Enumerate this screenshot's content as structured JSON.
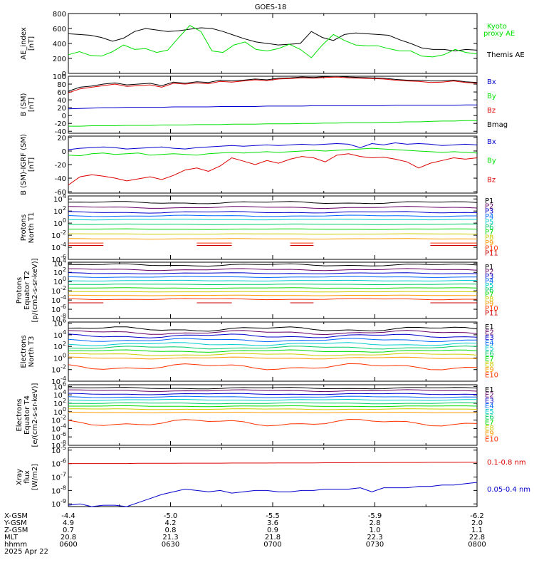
{
  "title": "GOES-18",
  "colors": {
    "black": "#000000",
    "green": "#00e000",
    "blue": "#0000cc",
    "red": "#dd0000",
    "p_colors": [
      "#000000",
      "#660066",
      "#0000cc",
      "#0066ff",
      "#00cccc",
      "#00cc66",
      "#00dd00",
      "#cccc00",
      "#ff9900",
      "#ff3300",
      "#cc0000"
    ],
    "e_colors": [
      "#000000",
      "#660066",
      "#0000cc",
      "#0066ff",
      "#00cccc",
      "#00cc66",
      "#00dd00",
      "#cccc00",
      "#ff9900",
      "#ff3300",
      "#cc0000"
    ]
  },
  "chart_data": [
    {
      "id": "ae",
      "type": "line",
      "ylabel": "AE_index [nT]",
      "yticks": [
        "800",
        "600",
        "400",
        "200",
        "0"
      ],
      "ylim": [
        0,
        800
      ],
      "legend": [
        {
          "text": "Kyoto",
          "color": "green"
        },
        {
          "text": "proxy AE",
          "color": "green"
        },
        {
          "text": "Themis AE",
          "color": "black"
        }
      ],
      "series": [
        {
          "name": "Themis AE",
          "color": "black",
          "values": [
            530,
            520,
            510,
            480,
            430,
            470,
            560,
            600,
            580,
            560,
            570,
            590,
            610,
            600,
            560,
            510,
            460,
            420,
            400,
            380,
            390,
            400,
            560,
            480,
            440,
            520,
            540,
            530,
            520,
            510,
            450,
            400,
            340,
            320,
            320,
            300,
            320,
            310
          ]
        },
        {
          "name": "Kyoto proxy AE",
          "color": "green",
          "values": [
            250,
            290,
            240,
            230,
            290,
            380,
            320,
            330,
            280,
            310,
            480,
            640,
            560,
            300,
            280,
            380,
            420,
            320,
            300,
            330,
            390,
            320,
            210,
            380,
            520,
            440,
            380,
            370,
            370,
            330,
            300,
            300,
            230,
            220,
            250,
            320,
            280,
            260
          ]
        }
      ]
    },
    {
      "id": "bsm",
      "type": "line",
      "ylabel": "B (SM) [nT]",
      "yticks": [
        "100",
        "80",
        "60",
        "40",
        "20",
        "0",
        "-20",
        "-40"
      ],
      "ylim": [
        -45,
        100
      ],
      "legend": [
        {
          "text": "Bx",
          "color": "blue"
        },
        {
          "text": "By",
          "color": "green"
        },
        {
          "text": "Bz",
          "color": "red"
        },
        {
          "text": "Bmag",
          "color": "black"
        }
      ],
      "series": [
        {
          "name": "Bmag",
          "color": "black",
          "values": [
            62,
            72,
            75,
            80,
            83,
            78,
            80,
            82,
            76,
            85,
            82,
            86,
            84,
            90,
            88,
            90,
            93,
            91,
            95,
            96,
            98,
            97,
            99,
            100,
            98,
            97,
            96,
            95,
            92,
            90,
            90,
            88,
            88,
            90,
            86,
            84
          ]
        },
        {
          "name": "Bz",
          "color": "red",
          "values": [
            58,
            68,
            72,
            76,
            80,
            74,
            76,
            78,
            72,
            82,
            80,
            83,
            81,
            87,
            85,
            88,
            91,
            89,
            93,
            94,
            96,
            95,
            97,
            98,
            96,
            95,
            94,
            93,
            90,
            88,
            87,
            84,
            85,
            88,
            84,
            82
          ]
        },
        {
          "name": "Bx",
          "color": "blue",
          "values": [
            17,
            18,
            19,
            20,
            20,
            21,
            21,
            21,
            21,
            22,
            22,
            22,
            22,
            23,
            23,
            23,
            23,
            24,
            24,
            24,
            24,
            25,
            25,
            25,
            25,
            25,
            25,
            25,
            26,
            26,
            26,
            26,
            26,
            26,
            27,
            27
          ]
        },
        {
          "name": "By",
          "color": "green",
          "values": [
            -27,
            -27,
            -26,
            -26,
            -26,
            -25,
            -25,
            -25,
            -24,
            -24,
            -24,
            -23,
            -23,
            -23,
            -22,
            -22,
            -22,
            -21,
            -21,
            -21,
            -20,
            -20,
            -19,
            -19,
            -18,
            -18,
            -18,
            -17,
            -17,
            -16,
            -16,
            -15,
            -14,
            -14,
            -13,
            -13
          ]
        }
      ]
    },
    {
      "id": "bdiff",
      "type": "line",
      "ylabel": "B (SM)-IGRF (SM) [nT]",
      "yticks": [
        "20",
        "0",
        "-20",
        "-40",
        "-60"
      ],
      "ylim": [
        -62,
        22
      ],
      "legend": [
        {
          "text": "Bx",
          "color": "blue"
        },
        {
          "text": "By",
          "color": "green"
        },
        {
          "text": "Bz",
          "color": "red"
        }
      ],
      "series": [
        {
          "name": "Bx",
          "color": "blue",
          "values": [
            2,
            4,
            5,
            6,
            5,
            3,
            4,
            5,
            6,
            4,
            3,
            5,
            6,
            7,
            8,
            7,
            8,
            9,
            8,
            9,
            10,
            9,
            10,
            11,
            10,
            5,
            11,
            9,
            12,
            10,
            11,
            10,
            8,
            9,
            10,
            9
          ]
        },
        {
          "name": "By",
          "color": "green",
          "values": [
            -6,
            -7,
            -4,
            -3,
            -5,
            -4,
            -3,
            -6,
            -5,
            -4,
            -5,
            -6,
            -4,
            -3,
            -2,
            -3,
            -2,
            -1,
            -2,
            -1,
            0,
            1,
            0,
            1,
            2,
            3,
            4,
            3,
            2,
            1,
            0,
            -1,
            -2,
            -1,
            -2,
            -3
          ]
        },
        {
          "name": "Bz",
          "color": "red",
          "values": [
            -50,
            -38,
            -35,
            -37,
            -40,
            -44,
            -41,
            -38,
            -42,
            -36,
            -28,
            -25,
            -30,
            -22,
            -10,
            -15,
            -20,
            -14,
            -18,
            -12,
            -8,
            -10,
            -16,
            -6,
            -4,
            -8,
            -10,
            -9,
            -12,
            -16,
            -25,
            -18,
            -14,
            -10,
            -12,
            -10
          ]
        }
      ]
    },
    {
      "id": "p_north",
      "type": "line",
      "log": true,
      "ylabel": "Protons North T1",
      "yticks": [
        "10^4",
        "10^2",
        "10^0",
        "10^-2",
        "10^-4",
        "10^-6"
      ],
      "ylim_exp": [
        -6,
        4.5
      ],
      "legend": [
        "P1",
        "P2",
        "P3",
        "P4",
        "P5",
        "P6",
        "P7",
        "P8",
        "P9",
        "P10",
        "P11"
      ],
      "levels": [
        3.4,
        2.6,
        1.8,
        1.2,
        0.6,
        -0.2,
        -1.0,
        -1.8,
        -2.6,
        -3.3,
        -3.7
      ],
      "variation": [
        0.15,
        0.12,
        0.1,
        0.08,
        0.05,
        0.04,
        0.04,
        0.03,
        0.03,
        0.0,
        0.0
      ],
      "gaps": [
        false,
        false,
        false,
        false,
        false,
        false,
        false,
        false,
        false,
        true,
        true
      ]
    },
    {
      "id": "p_equator",
      "type": "line",
      "log": true,
      "ylabel": "Protons Equator T2 [p/(cm2-s-sr-keV)]",
      "yticks": [
        "10^4",
        "10^2",
        "10^0",
        "10^-2",
        "10^-4",
        "10^-6",
        "10^-8"
      ],
      "ylim_exp": [
        -8,
        4.2
      ],
      "legend": [
        "P1",
        "P2",
        "P3",
        "P4",
        "P5",
        "P6",
        "P7",
        "P8",
        "P9",
        "P10",
        "P11"
      ],
      "levels": [
        3.6,
        2.6,
        1.8,
        1.0,
        0.2,
        -0.6,
        -1.4,
        -2.2,
        -3.0,
        -3.8,
        -4.6
      ],
      "variation": [
        0.2,
        0.15,
        0.1,
        0.08,
        0.06,
        0.05,
        0.05,
        0.04,
        0.04,
        0.1,
        0.0
      ],
      "gaps": [
        false,
        false,
        false,
        false,
        false,
        false,
        false,
        false,
        false,
        false,
        true
      ]
    },
    {
      "id": "e_north",
      "type": "line",
      "log": true,
      "ylabel": "Electrons North T3",
      "yticks": [
        "10^6",
        "10^4",
        "10^2",
        "10^0",
        "10^-2",
        "10^-4"
      ],
      "ylim_exp": [
        -4,
        6.2
      ],
      "legend": [
        "E1",
        "E2",
        "E3",
        "E4",
        "E5",
        "E6",
        "E7",
        "E8",
        "E9",
        "E10"
      ],
      "levels": [
        5.0,
        4.4,
        3.8,
        3.1,
        2.4,
        1.8,
        1.2,
        0.6,
        0.0,
        -1.5
      ],
      "variation": [
        0.3,
        0.25,
        0.25,
        0.2,
        0.2,
        0.18,
        0.15,
        0.15,
        0.12,
        0.4
      ],
      "gaps": [
        false,
        false,
        false,
        false,
        false,
        false,
        false,
        false,
        false,
        false
      ]
    },
    {
      "id": "e_equator",
      "type": "line",
      "log": true,
      "ylabel": "Electrons Equator T4 [e/(cm2-s-sr-keV)]",
      "yticks": [
        "10^6",
        "10^4",
        "10^2",
        "10^0",
        "10^-2",
        "10^-4",
        "10^-6",
        "10^-8"
      ],
      "ylim_exp": [
        -8,
        6.4
      ],
      "legend": [
        "E1",
        "E2",
        "E3",
        "E4",
        "E5",
        "E6",
        "E7",
        "E8",
        "E9",
        "E10"
      ],
      "levels": [
        5.6,
        5.0,
        4.2,
        3.5,
        2.8,
        2.0,
        1.3,
        0.6,
        -0.2,
        -2.6
      ],
      "variation": [
        0.15,
        0.15,
        0.12,
        0.12,
        0.1,
        0.1,
        0.08,
        0.08,
        0.06,
        0.6
      ],
      "gaps": [
        false,
        false,
        false,
        false,
        false,
        false,
        false,
        false,
        false,
        false
      ]
    },
    {
      "id": "xray",
      "type": "line",
      "log": true,
      "ylabel": "Xray flux [W/m2]",
      "yticks": [
        "10^-5",
        "10^-6",
        "10^-7",
        "10^-8",
        "10^-9"
      ],
      "ylim_exp": [
        -9.2,
        -4.8
      ],
      "legend": [
        {
          "text": "0.1-0.8 nm",
          "color": "red"
        },
        {
          "text": "0.05-0.4 nm",
          "color": "blue"
        }
      ],
      "series": [
        {
          "name": "0.1-0.8 nm",
          "color": "red",
          "values": [
            -6.0,
            -6.0,
            -6.0,
            -6.0,
            -6.0,
            -6.0,
            -5.98,
            -5.98,
            -5.98,
            -5.98,
            -5.97,
            -5.97,
            -5.97,
            -5.97,
            -5.96,
            -5.96,
            -5.96,
            -5.96,
            -5.95,
            -5.95,
            -5.95,
            -5.95,
            -5.94,
            -5.94,
            -5.94,
            -5.93,
            -5.93,
            -5.93,
            -5.92,
            -5.92,
            -5.92,
            -5.91,
            -5.91,
            -5.91,
            -5.9,
            -5.9
          ]
        },
        {
          "name": "0.05-0.4 nm",
          "color": "blue",
          "values": [
            -9.1,
            -9.0,
            -9.2,
            -9.1,
            -9.1,
            -9.2,
            -8.9,
            -8.6,
            -8.3,
            -8.1,
            -7.9,
            -8.0,
            -8.1,
            -8.0,
            -8.2,
            -8.1,
            -8.0,
            -8.0,
            -8.1,
            -8.1,
            -8.0,
            -8.0,
            -7.9,
            -7.9,
            -7.9,
            -7.8,
            -8.1,
            -7.8,
            -7.8,
            -7.8,
            -7.7,
            -7.7,
            -7.6,
            -7.6,
            -7.5,
            -7.4
          ]
        }
      ]
    }
  ],
  "xaxis": {
    "labels": [
      "X-GSM",
      "Y-GSM",
      "Z-GSM",
      "MLT",
      "hhmm",
      "2025 Apr 22"
    ],
    "columns": [
      {
        "vals": [
          "-4.4",
          "4.9",
          "0.7",
          "20.8",
          "0600"
        ]
      },
      {
        "vals": [
          "-5.0",
          "4.2",
          "0.8",
          "21.3",
          "0630"
        ]
      },
      {
        "vals": [
          "-5.5",
          "3.6",
          "0.9",
          "21.8",
          "0700"
        ]
      },
      {
        "vals": [
          "-5.9",
          "2.8",
          "1.0",
          "22.3",
          "0730"
        ]
      },
      {
        "vals": [
          "-6.2",
          "2.0",
          "1.1",
          "22.8",
          "0800"
        ]
      }
    ]
  }
}
